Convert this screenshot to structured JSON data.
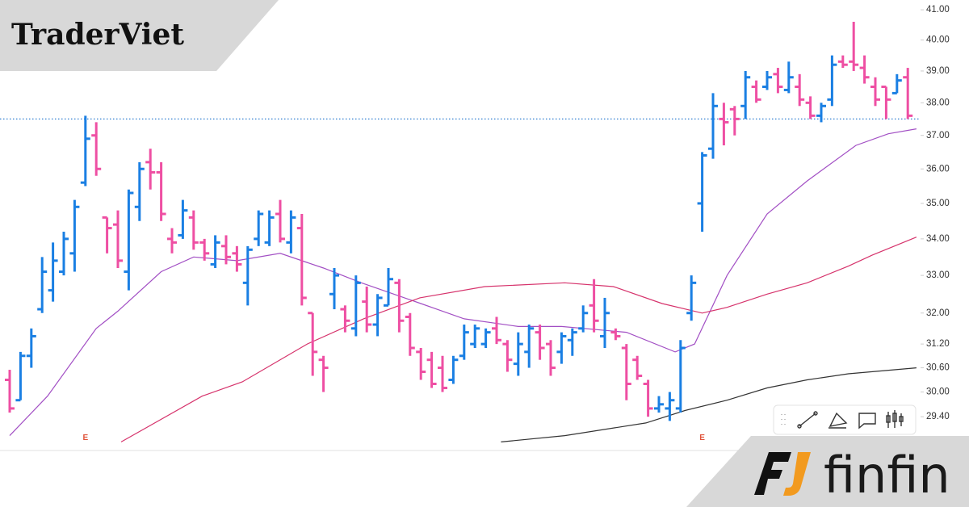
{
  "brand": {
    "title": "TraderViet"
  },
  "logo": {
    "text": "finfin"
  },
  "chart_data": {
    "type": "ohlc",
    "open": [
      30.3,
      29.8,
      30.9,
      32.1,
      32.6,
      33.1,
      33.6,
      35.6,
      37.0,
      34.6,
      34.4,
      33.1,
      34.9,
      36.2,
      35.9,
      34.0,
      34.1,
      34.6,
      33.9,
      33.3,
      33.8,
      33.6,
      32.8,
      34.0,
      33.9,
      34.7,
      33.9,
      34.3,
      32.0,
      30.8,
      32.5,
      32.1,
      31.6,
      32.3,
      31.7,
      32.2,
      32.8,
      31.9,
      31.0,
      30.8,
      30.6,
      30.3,
      30.9,
      31.2,
      31.2,
      31.6,
      31.2,
      30.7,
      31.0,
      31.5,
      31.2,
      31.0,
      31.3,
      31.6,
      32.2,
      31.4,
      31.5,
      31.1,
      30.8,
      30.2,
      29.6,
      29.6,
      29.6,
      32.0,
      35.0,
      36.6,
      37.5,
      37.8,
      37.9,
      38.5,
      38.5,
      38.9,
      38.4,
      38.5,
      38.0,
      37.6,
      38.1,
      39.3,
      39.3,
      39.1,
      38.5,
      38.5,
      38.3,
      38.8
    ],
    "high": [
      30.55,
      31.0,
      31.6,
      33.5,
      33.9,
      34.2,
      35.1,
      37.6,
      37.4,
      34.6,
      34.8,
      35.4,
      36.2,
      36.6,
      36.2,
      34.3,
      35.1,
      34.8,
      34.0,
      34.1,
      34.1,
      33.8,
      33.8,
      34.8,
      34.8,
      35.1,
      34.8,
      34.7,
      32.0,
      30.9,
      33.2,
      32.2,
      33.0,
      32.7,
      32.5,
      33.2,
      32.9,
      32.0,
      31.1,
      31.0,
      30.9,
      30.9,
      31.7,
      31.7,
      31.6,
      31.9,
      31.3,
      31.5,
      31.7,
      31.7,
      31.3,
      31.5,
      31.6,
      32.2,
      32.9,
      32.4,
      31.6,
      31.2,
      30.9,
      30.3,
      29.9,
      30.0,
      31.3,
      33.0,
      36.5,
      38.3,
      38.0,
      37.9,
      39.0,
      38.7,
      39.0,
      39.1,
      39.3,
      38.9,
      38.2,
      38.0,
      39.5,
      39.5,
      40.6,
      39.5,
      38.8,
      38.5,
      38.9,
      39.1
    ],
    "low": [
      29.5,
      29.8,
      30.6,
      32.0,
      32.3,
      33.0,
      33.1,
      35.5,
      35.8,
      33.6,
      33.2,
      32.6,
      34.5,
      35.4,
      34.5,
      33.6,
      34.0,
      33.7,
      33.4,
      33.2,
      33.3,
      33.1,
      32.2,
      33.8,
      33.8,
      33.9,
      33.6,
      32.2,
      30.4,
      30.0,
      32.1,
      31.5,
      31.4,
      31.5,
      31.4,
      32.2,
      31.5,
      30.9,
      30.3,
      30.1,
      30.0,
      30.2,
      30.8,
      31.1,
      31.1,
      31.2,
      30.5,
      30.4,
      30.6,
      30.8,
      30.4,
      30.7,
      30.9,
      31.5,
      31.5,
      31.1,
      31.3,
      29.8,
      30.3,
      29.4,
      29.5,
      29.3,
      29.5,
      31.8,
      34.2,
      36.3,
      36.7,
      37.0,
      37.5,
      38.0,
      38.4,
      38.3,
      38.3,
      37.9,
      37.5,
      37.4,
      37.9,
      39.1,
      39.0,
      38.6,
      37.9,
      37.5,
      38.3,
      37.5
    ],
    "close": [
      29.6,
      30.9,
      31.4,
      33.1,
      33.4,
      34.0,
      34.9,
      36.9,
      36.0,
      34.3,
      33.4,
      35.3,
      36.0,
      35.9,
      34.7,
      33.9,
      34.8,
      33.9,
      33.6,
      33.9,
      33.5,
      33.3,
      33.7,
      34.7,
      34.6,
      34.0,
      34.6,
      32.4,
      31.0,
      30.6,
      33.0,
      31.8,
      32.8,
      31.7,
      32.4,
      32.9,
      31.8,
      31.1,
      30.5,
      30.2,
      30.1,
      30.8,
      31.5,
      31.6,
      31.5,
      31.3,
      30.8,
      31.2,
      31.6,
      31.1,
      30.6,
      31.4,
      31.5,
      32.0,
      31.8,
      32.0,
      31.4,
      30.2,
      30.4,
      29.6,
      29.7,
      29.8,
      31.1,
      32.8,
      36.4,
      37.9,
      37.4,
      37.5,
      38.8,
      38.1,
      38.8,
      38.5,
      38.8,
      38.1,
      37.6,
      37.9,
      39.2,
      39.2,
      39.2,
      38.8,
      38.1,
      38.1,
      38.7,
      37.6
    ],
    "ylim": [
      28.6,
      41.33
    ],
    "log_scale": true,
    "yticks": [
      {
        "value": 41,
        "label": "41.00"
      },
      {
        "value": 40,
        "label": "40.00"
      },
      {
        "value": 39,
        "label": "39.00"
      },
      {
        "value": 38,
        "label": "38.00"
      },
      {
        "value": 37,
        "label": "37.00"
      },
      {
        "value": 36,
        "label": "36.00"
      },
      {
        "value": 35,
        "label": "35.00"
      },
      {
        "value": 34,
        "label": "34.00"
      },
      {
        "value": 33,
        "label": "33.00"
      },
      {
        "value": 32,
        "label": "32.00"
      },
      {
        "value": 31.2,
        "label": "31.20"
      },
      {
        "value": 30.6,
        "label": "30.60"
      },
      {
        "value": 30,
        "label": "30.00"
      },
      {
        "value": 29.4,
        "label": "29.40"
      }
    ],
    "up_color": "#1a7fe3",
    "down_color": "#ee4fa3",
    "reference_line": {
      "value": 37.5,
      "color": "#2f7fd0"
    },
    "events": [
      {
        "x": 7,
        "label": "E"
      },
      {
        "x": 64,
        "label": "E"
      }
    ],
    "moving_averages": [
      {
        "color": "#a24fc4",
        "x": [
          0,
          3.5,
          8,
          10,
          14,
          17,
          21,
          25,
          29,
          32.5,
          38,
          42,
          47,
          51,
          57,
          61.5,
          63.3,
          66.3,
          70,
          73.7,
          78.2,
          81.2,
          83.8
        ],
        "values": [
          28.95,
          29.9,
          31.6,
          32.05,
          33.1,
          33.5,
          33.4,
          33.6,
          33.2,
          32.8,
          32.25,
          31.85,
          31.65,
          31.65,
          31.5,
          31.0,
          31.2,
          33.0,
          34.7,
          35.65,
          36.7,
          37.05,
          37.2
        ]
      },
      {
        "color": "#d6336c",
        "x": [
          10.3,
          17.8,
          21.5,
          27.5,
          32.7,
          37.9,
          43.9,
          51.3,
          55.8,
          60.3,
          64,
          66.3,
          70,
          73.7,
          77.5,
          79.7,
          83.8
        ],
        "values": [
          28.8,
          29.9,
          30.25,
          31.2,
          31.85,
          32.4,
          32.7,
          32.8,
          32.7,
          32.25,
          32.0,
          32.15,
          32.5,
          32.8,
          33.25,
          33.55,
          34.05
        ]
      },
      {
        "color": "#333333",
        "x": [
          45.4,
          51.3,
          58.8,
          62.4,
          66.3,
          70,
          73.7,
          77.5,
          83.8
        ],
        "values": [
          28.8,
          28.95,
          29.25,
          29.55,
          29.8,
          30.1,
          30.3,
          30.45,
          30.6
        ]
      }
    ]
  }
}
